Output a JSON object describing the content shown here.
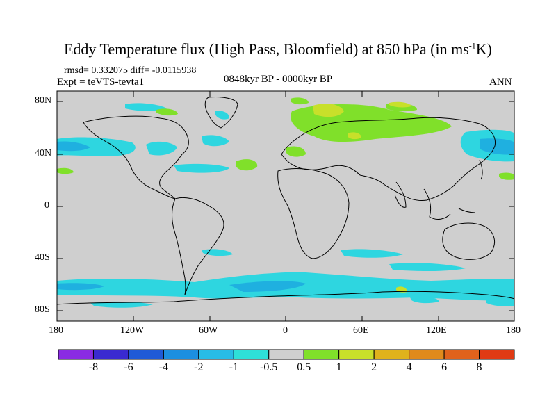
{
  "title": {
    "main": "Eddy Temperature flux (High Pass, Bloomfield) at 850 hPa (in ms",
    "sup": "-1",
    "tail": "K)"
  },
  "stats": "rmsd= 0.332075 diff= -0.0115938",
  "experiment": "Expt = teVTS-tevta1",
  "period": "0848kyr BP - 0000kyr BP",
  "season": "ANN",
  "lat_ticks": [
    "80N",
    "40N",
    "0",
    "40S",
    "80S"
  ],
  "lon_ticks": [
    "180",
    "120W",
    "60W",
    "0",
    "60E",
    "120E",
    "180"
  ],
  "colorbar": {
    "labels": [
      "-8",
      "-6",
      "-4",
      "-2",
      "-1",
      "-0.5",
      "0.5",
      "1",
      "2",
      "4",
      "6",
      "8"
    ],
    "colors": [
      "#8a2be2",
      "#3a2ad0",
      "#1f5ad6",
      "#1c8fe0",
      "#28bce6",
      "#2ee0d8",
      "#cfcfcf",
      "#80e02a",
      "#c8e02a",
      "#e0b21c",
      "#e08a1c",
      "#e0621c",
      "#e03a14"
    ]
  },
  "palette": {
    "land_sea_bg": "#cfcfcf",
    "negative": "#2ed6e0",
    "negative_strong": "#1fb0e0",
    "positive": "#80e02a",
    "positive_strong": "#c8e02a",
    "positive_peak": "#e0b21c"
  }
}
